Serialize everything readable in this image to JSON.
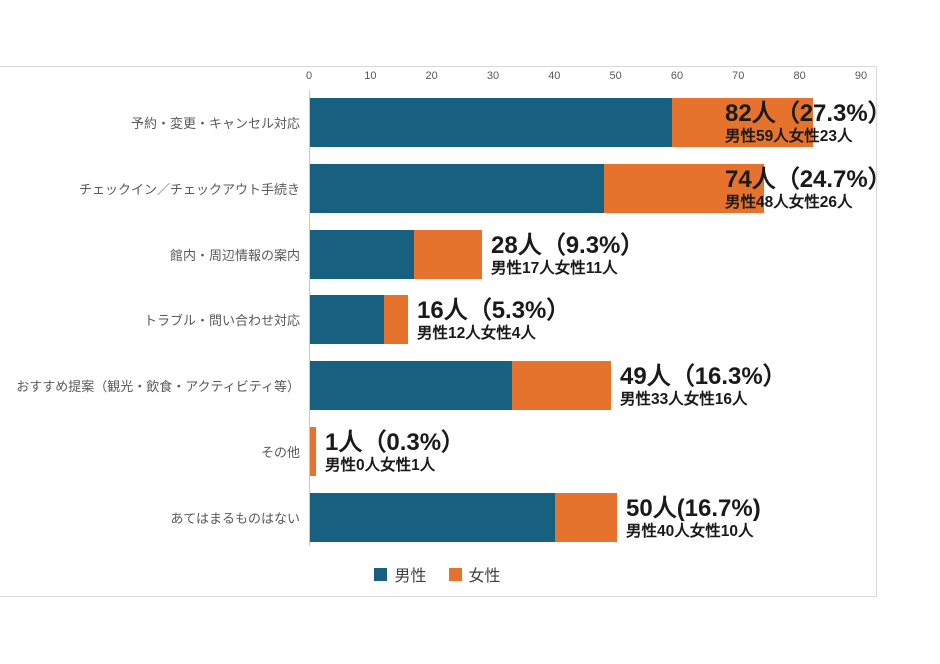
{
  "chart_data": {
    "type": "bar",
    "orientation": "horizontal",
    "stacked": true,
    "title": "",
    "categories": [
      "予約・変更・キャンセル対応",
      "チェックイン／チェックアウト手続き",
      "館内・周辺情報の案内",
      "トラブル・問い合わせ対応",
      "おすすめ提案（観光・飲食・アクティビティ等）",
      "その他",
      "あてはまるものはない"
    ],
    "series": [
      {
        "name": "男性",
        "color": "#17607f",
        "values": [
          59,
          48,
          17,
          12,
          33,
          0,
          40
        ]
      },
      {
        "name": "女性",
        "color": "#e5732d",
        "values": [
          23,
          26,
          11,
          4,
          16,
          1,
          10
        ]
      }
    ],
    "totals": [
      82,
      74,
      28,
      16,
      49,
      1,
      50
    ],
    "data_labels": [
      {
        "line1": "82人（27.3%）",
        "line2": "男性59人女性23人"
      },
      {
        "line1": "74人（24.7%）",
        "line2": "男性48人女性26人"
      },
      {
        "line1": "28人（9.3%）",
        "line2": "男性17人女性11人"
      },
      {
        "line1": "16人（5.3%）",
        "line2": "男性12人女性4人"
      },
      {
        "line1": "49人（16.3%）",
        "line2": "男性33人女性16人"
      },
      {
        "line1": "1人（0.3%）",
        "line2": "男性0人女性1人"
      },
      {
        "line1": "50人(16.7%)",
        "line2": "男性40人女性10人"
      }
    ],
    "x_axis": {
      "min": 0,
      "max": 90,
      "tick_interval": 10,
      "ticks": [
        0,
        10,
        20,
        30,
        40,
        50,
        60,
        70,
        80,
        90
      ]
    },
    "legend": {
      "position": "bottom",
      "items": [
        "男性",
        "女性"
      ]
    },
    "grid": false
  },
  "style": {
    "male_color": "#17607f",
    "female_color": "#e5732d",
    "frame_color": "#d9d9d9",
    "axis_line_color": "#c9c9c9",
    "tick_label_color": "#595959",
    "category_label_color": "#595959",
    "data_label_color": "#1a1a1a",
    "legend_text_color": "#3f3f3f",
    "background": "#ffffff"
  }
}
